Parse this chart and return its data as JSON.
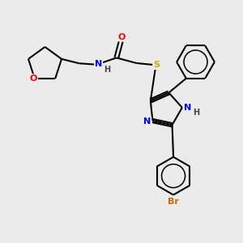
{
  "bg_color": "#ebebeb",
  "bond_color": "#000000",
  "bond_width": 1.5,
  "atom_colors": {
    "O": "#ff0000",
    "N": "#0000ff",
    "S": "#ccaa00",
    "Br": "#cc6600",
    "H": "#000000"
  },
  "figsize": [
    3.0,
    3.0
  ],
  "dpi": 100
}
